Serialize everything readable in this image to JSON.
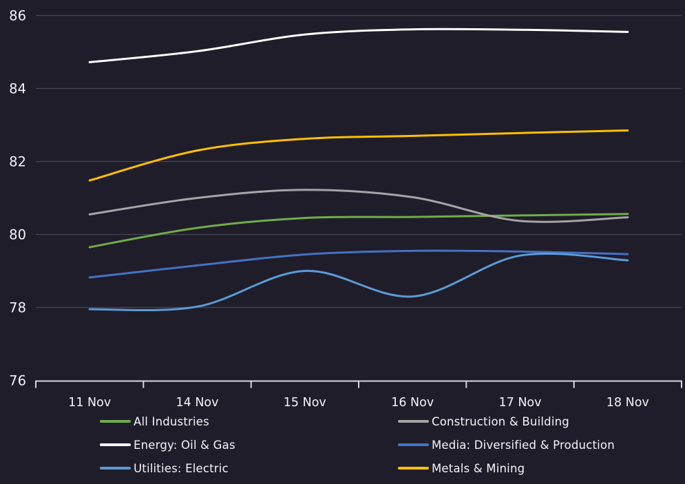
{
  "colors": {
    "background": "#201d2b",
    "gridline": "#4a4753",
    "axis_line": "#d9d7dd",
    "text": "#f5f4f7"
  },
  "chart_data": {
    "type": "line",
    "title": "",
    "xlabel": "",
    "ylabel": "",
    "x_categories": [
      "11 Nov",
      "14 Nov",
      "15 Nov",
      "16 Nov",
      "17 Nov",
      "18 Nov"
    ],
    "y_ticks": [
      86,
      84,
      82,
      80,
      78,
      76
    ],
    "ylim": [
      76,
      86
    ],
    "grid": true,
    "line_style": "smooth-spline",
    "legend_position": "bottom-two-columns",
    "series": [
      {
        "name": "All Industries",
        "color": "#70ad47",
        "values": [
          79.65,
          80.18,
          80.45,
          80.48,
          80.52,
          80.56
        ]
      },
      {
        "name": "Construction & Building",
        "color": "#a5a5a5",
        "values": [
          80.55,
          81.0,
          81.22,
          81.02,
          80.37,
          80.47
        ]
      },
      {
        "name": "Energy: Oil & Gas",
        "color": "#ffffff",
        "values": [
          84.72,
          85.02,
          85.48,
          85.62,
          85.61,
          85.55
        ]
      },
      {
        "name": "Media: Diversified & Production",
        "color": "#4472c4",
        "values": [
          78.82,
          79.15,
          79.45,
          79.55,
          79.53,
          79.46
        ]
      },
      {
        "name": "Utilities: Electric",
        "color": "#5b9bd5",
        "values": [
          77.95,
          78.02,
          79.0,
          78.3,
          79.42,
          79.29
        ]
      },
      {
        "name": "Metals & Mining",
        "color": "#ffc000",
        "values": [
          81.48,
          82.3,
          82.62,
          82.7,
          82.78,
          82.85
        ]
      }
    ],
    "legend_grid_order": [
      "All Industries",
      "Construction & Building",
      "Energy: Oil & Gas",
      "Media: Diversified & Production",
      "Utilities: Electric",
      "Metals & Mining"
    ]
  }
}
